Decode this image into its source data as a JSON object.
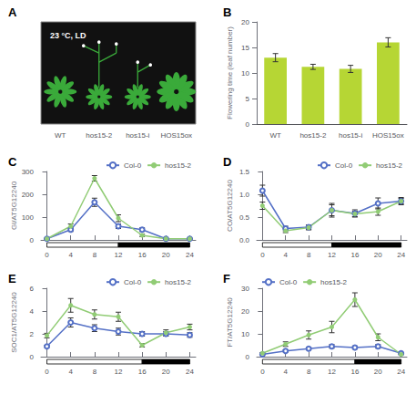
{
  "chart_data": [
    {
      "type": "illustration",
      "title": "A",
      "annotations": [
        "23 °C, LD"
      ],
      "categories": [
        "WT",
        "hos15-2",
        "hos15-i",
        "HOS15ox"
      ],
      "color": "#3aaa3a"
    },
    {
      "type": "bar",
      "title": "B",
      "categories": [
        "WT",
        "hos15-2",
        "hos15-i",
        "HOS15ox"
      ],
      "values": [
        13.0,
        11.2,
        10.8,
        16.0
      ],
      "errors": [
        0.8,
        0.5,
        0.7,
        0.9
      ],
      "ylabel": "Flowering time (leaf number)",
      "ylim": [
        0,
        20
      ],
      "yticks": [
        0,
        5,
        10,
        15,
        20
      ],
      "grid": false
    },
    {
      "type": "line",
      "title": "C",
      "ylabel": "GI/AT5G12240",
      "x": [
        0,
        4,
        8,
        12,
        16,
        20,
        24
      ],
      "series": [
        {
          "name": "Col-0",
          "marker": "open circle",
          "values": [
            5,
            45,
            165,
            60,
            45,
            5,
            5
          ],
          "errors": [
            2,
            8,
            18,
            10,
            8,
            2,
            2
          ]
        },
        {
          "name": "hos15-2",
          "marker": "filled circle",
          "values": [
            5,
            60,
            270,
            95,
            20,
            5,
            5
          ],
          "errors": [
            2,
            10,
            12,
            15,
            5,
            2,
            2
          ]
        }
      ],
      "xlim": [
        -1,
        25
      ],
      "xticks": [
        0,
        4,
        8,
        12,
        16,
        20,
        24
      ],
      "ylim": [
        0,
        300
      ],
      "yticks": [
        0,
        100,
        200,
        300
      ],
      "light_period": [
        0,
        12
      ],
      "dark_period": [
        12,
        24
      ],
      "legend": "upper right",
      "grid": false
    },
    {
      "type": "line",
      "title": "D",
      "ylabel": "CO/AT5G12240",
      "x": [
        0,
        4,
        8,
        12,
        16,
        20,
        24
      ],
      "series": [
        {
          "name": "Col-0",
          "marker": "open circle",
          "values": [
            1.08,
            0.25,
            0.28,
            0.65,
            0.58,
            0.8,
            0.85
          ],
          "errors": [
            0.12,
            0.05,
            0.05,
            0.15,
            0.08,
            0.12,
            0.08
          ]
        },
        {
          "name": "hos15-2",
          "marker": "filled circle",
          "values": [
            0.75,
            0.2,
            0.27,
            0.65,
            0.57,
            0.62,
            0.85
          ],
          "errors": [
            0.08,
            0.04,
            0.05,
            0.12,
            0.06,
            0.08,
            0.06
          ]
        }
      ],
      "xlim": [
        -1,
        25
      ],
      "xticks": [
        0,
        4,
        8,
        12,
        16,
        20,
        24
      ],
      "ylim": [
        0,
        1.5
      ],
      "yticks": [
        {
          "value": 0,
          "label": "0.0"
        },
        0.5,
        {
          "value": 1,
          "label": "1.0"
        },
        1.5
      ],
      "light_period": [
        0,
        12
      ],
      "dark_period": [
        12,
        24
      ],
      "legend": "upper right",
      "grid": false
    },
    {
      "type": "line",
      "title": "E",
      "ylabel": "SOC1/AT5G12240",
      "x": [
        0,
        4,
        8,
        12,
        16,
        20,
        24
      ],
      "series": [
        {
          "name": "Col-0",
          "marker": "open circle",
          "values": [
            0.9,
            3.0,
            2.5,
            2.2,
            2.0,
            2.0,
            1.9
          ],
          "errors": [
            0.1,
            0.4,
            0.3,
            0.3,
            0.2,
            0.2,
            0.2
          ]
        },
        {
          "name": "hos15-2",
          "marker": "filled circle",
          "values": [
            1.85,
            4.5,
            3.7,
            3.5,
            1.0,
            2.1,
            2.6
          ],
          "errors": [
            0.2,
            0.6,
            0.4,
            0.4,
            0.15,
            0.25,
            0.25
          ]
        }
      ],
      "xlim": [
        -1,
        25
      ],
      "xticks": [
        0,
        4,
        8,
        12,
        16,
        20,
        24
      ],
      "ylim": [
        0,
        6
      ],
      "yticks": [
        0,
        2,
        4,
        6
      ],
      "light_period": [
        0,
        16
      ],
      "dark_period": [
        16,
        24
      ],
      "legend": "upper right",
      "grid": false
    },
    {
      "type": "line",
      "title": "F",
      "ylabel": "FT/AT5G12240",
      "x": [
        0,
        4,
        8,
        12,
        16,
        20,
        24
      ],
      "series": [
        {
          "name": "Col-0",
          "marker": "open circle",
          "values": [
            1.0,
            2.5,
            3.5,
            4.5,
            4.0,
            4.5,
            1.5
          ],
          "errors": [
            0.2,
            0.5,
            0.6,
            0.8,
            0.7,
            0.8,
            0.3
          ]
        },
        {
          "name": "hos15-2",
          "marker": "filled circle",
          "values": [
            1.5,
            5.5,
            9.5,
            13.0,
            25.0,
            8.5,
            1.0
          ],
          "errors": [
            0.3,
            1.0,
            1.8,
            2.5,
            3.0,
            1.5,
            0.2
          ]
        }
      ],
      "xlim": [
        -1,
        25
      ],
      "xticks": [
        0,
        4,
        8,
        12,
        16,
        20,
        24
      ],
      "ylim": [
        0,
        30
      ],
      "yticks": [
        0,
        10,
        20,
        30
      ],
      "light_period": [
        0,
        16
      ],
      "dark_period": [
        16,
        24
      ],
      "legend": "upper left",
      "grid": false
    }
  ]
}
